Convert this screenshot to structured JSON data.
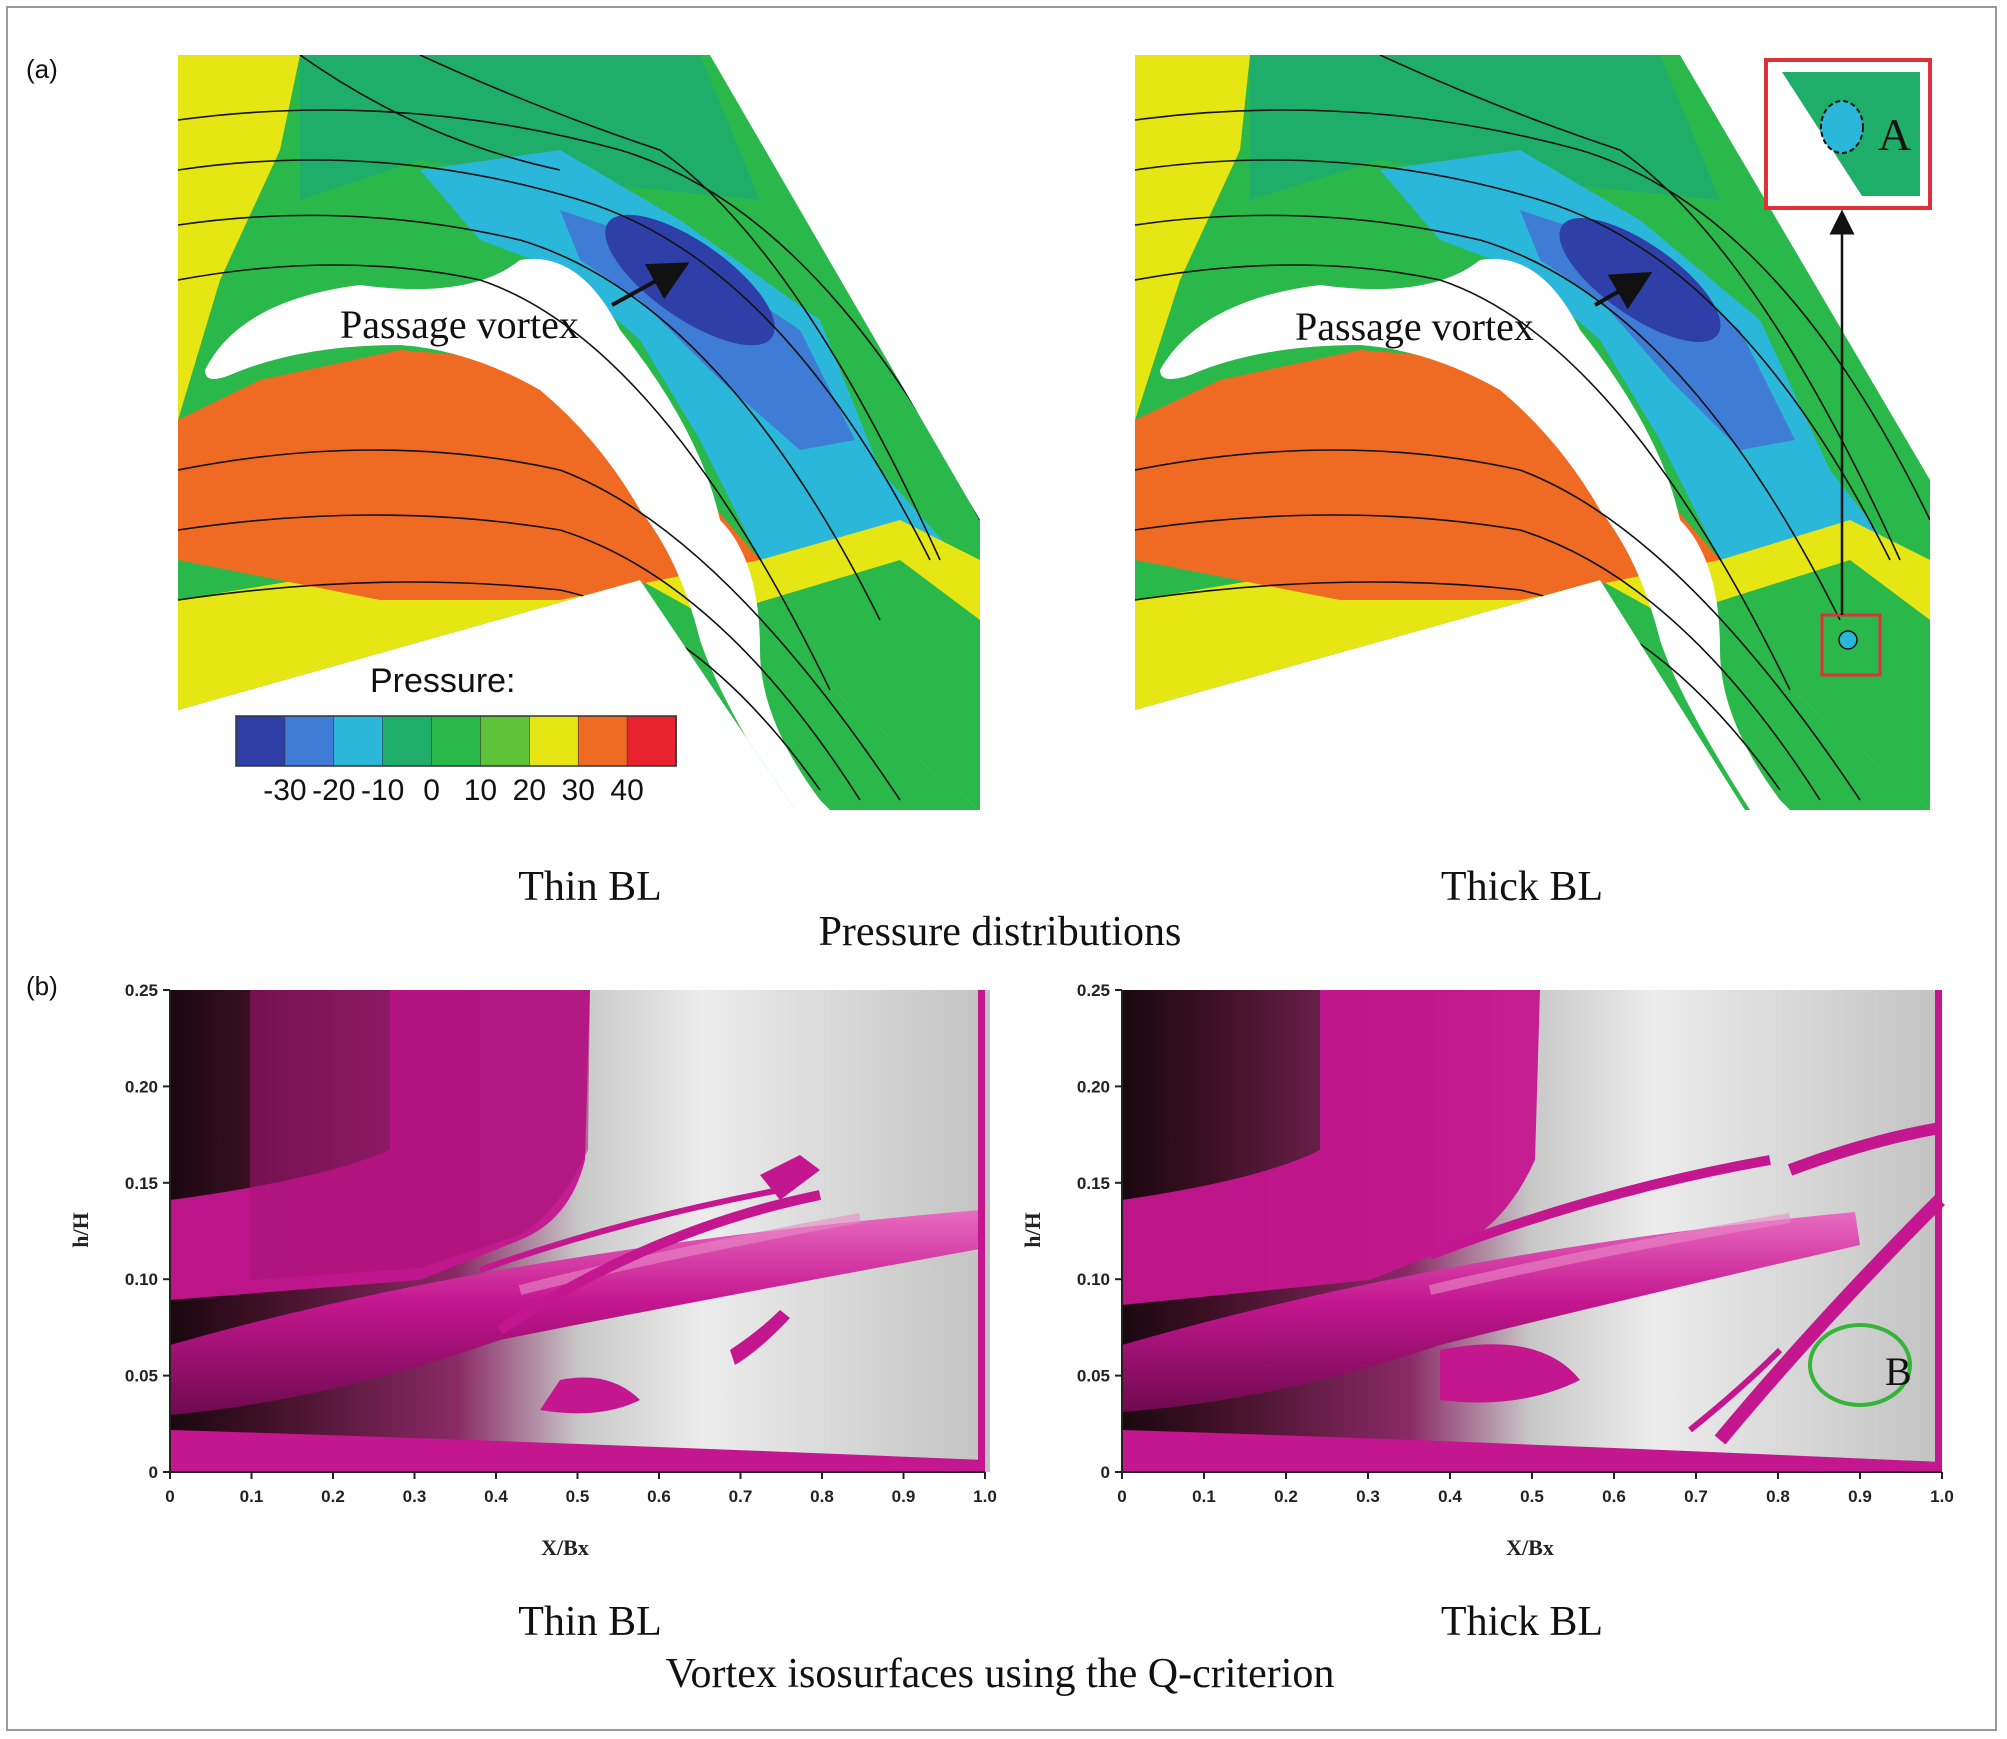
{
  "panel_a": {
    "label": "(a)",
    "left_plot": {
      "annotation": "Passage vortex",
      "caption": "Thin BL"
    },
    "right_plot": {
      "annotation": "Passage vortex",
      "caption": "Thick BL",
      "inset_label": "A"
    },
    "legend": {
      "title": "Pressure:",
      "tick_labels": [
        "-30",
        "-20",
        "-10",
        "0",
        "10",
        "20",
        "30",
        "40"
      ],
      "colors": [
        "#2f3fa8",
        "#3f7cd6",
        "#2bb7d9",
        "#1fae69",
        "#2bb84a",
        "#5fc33a",
        "#e6e615",
        "#ef6a22",
        "#e8232f"
      ]
    },
    "section_caption": "Pressure distributions"
  },
  "panel_b": {
    "label": "(b)",
    "left_plot": {
      "caption": "Thin BL"
    },
    "right_plot": {
      "caption": "Thick BL",
      "marker_label": "B"
    },
    "x_axis": {
      "title": "X/Bx",
      "ticks": [
        "0",
        "0.1",
        "0.2",
        "0.3",
        "0.4",
        "0.5",
        "0.6",
        "0.7",
        "0.8",
        "0.9",
        "1.0"
      ]
    },
    "y_axis": {
      "title": "h/H",
      "ticks": [
        "0",
        "0.05",
        "0.10",
        "0.15",
        "0.20",
        "0.25"
      ]
    },
    "section_caption": "Vortex isosurfaces using the Q-criterion"
  },
  "colors": {
    "isosurface": "#c4168f",
    "frame": "#9a9a9a",
    "highlight_box": "#e0303a",
    "marker_circle": "#34b53a"
  }
}
